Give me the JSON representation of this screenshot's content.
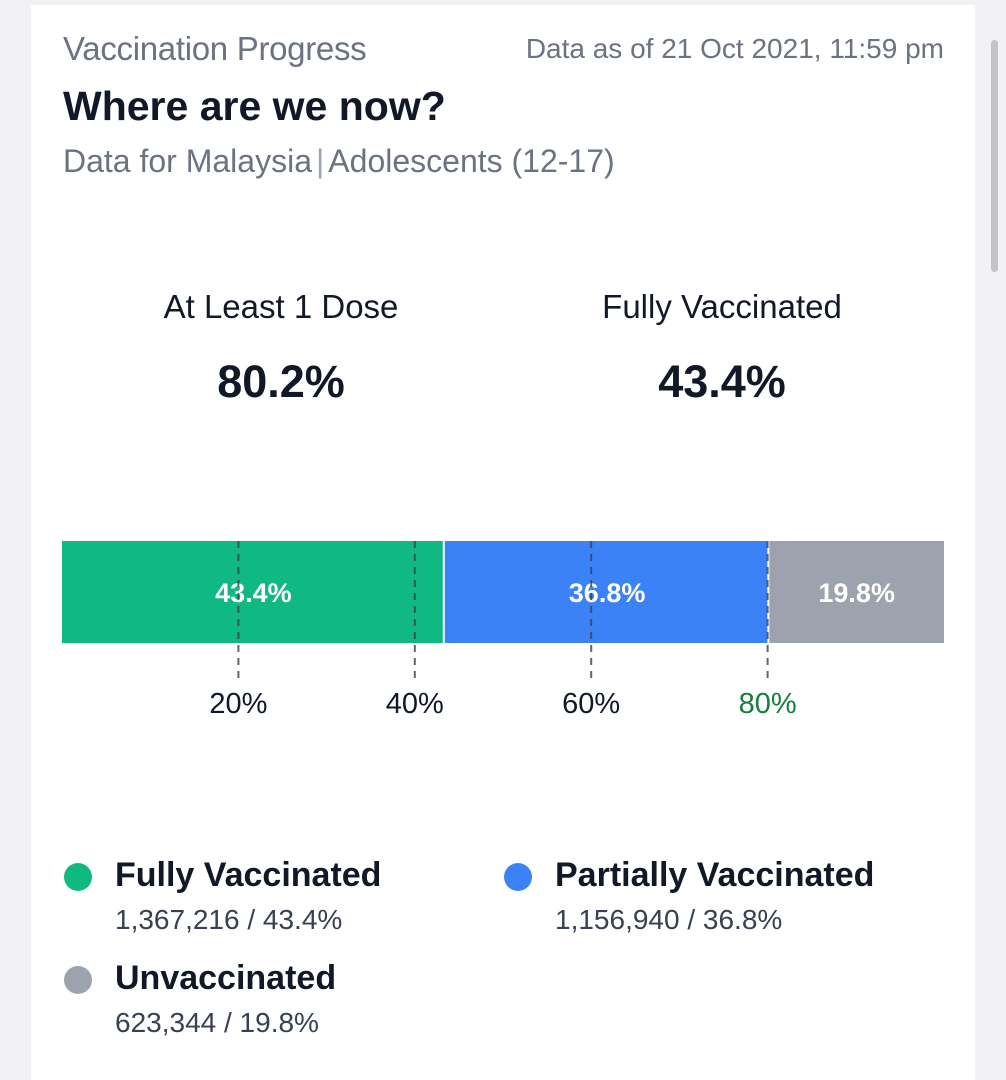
{
  "header": {
    "section_label": "Vaccination Progress",
    "data_as_of": "Data as of 21 Oct 2021, 11:59 pm",
    "title": "Where are we now?",
    "region": "Data for Malaysia",
    "separator": "|",
    "group": "Adolescents (12-17)"
  },
  "stats": [
    {
      "label": "At Least 1 Dose",
      "value": "80.2%"
    },
    {
      "label": "Fully Vaccinated",
      "value": "43.4%"
    }
  ],
  "chart_data": {
    "type": "bar",
    "orientation": "horizontal-stacked",
    "xlim": [
      0,
      100
    ],
    "segments": [
      {
        "name": "Fully Vaccinated",
        "value": 43.4,
        "label": "43.4%",
        "color": "#10b981"
      },
      {
        "name": "Partially Vaccinated",
        "value": 36.8,
        "label": "36.8%",
        "color": "#3b82f6"
      },
      {
        "name": "Unvaccinated",
        "value": 19.8,
        "label": "19.8%",
        "color": "#9ca3af"
      }
    ],
    "ticks": [
      {
        "value": 20,
        "label": "20%",
        "color": "#111827"
      },
      {
        "value": 40,
        "label": "40%",
        "color": "#111827"
      },
      {
        "value": 60,
        "label": "60%",
        "color": "#111827"
      },
      {
        "value": 80,
        "label": "80%",
        "color": "#15803d"
      }
    ],
    "grid": "dashed-markers"
  },
  "legend": [
    {
      "name": "Fully Vaccinated",
      "count": "1,367,216",
      "percent": "43.4%",
      "line": "1,367,216 / 43.4%",
      "color": "#10b981"
    },
    {
      "name": "Partially Vaccinated",
      "count": "1,156,940",
      "percent": "36.8%",
      "line": "1,156,940 / 36.8%",
      "color": "#3b82f6"
    },
    {
      "name": "Unvaccinated",
      "count": "623,344",
      "percent": "19.8%",
      "line": "623,344 / 19.8%",
      "color": "#9ca3af"
    }
  ]
}
